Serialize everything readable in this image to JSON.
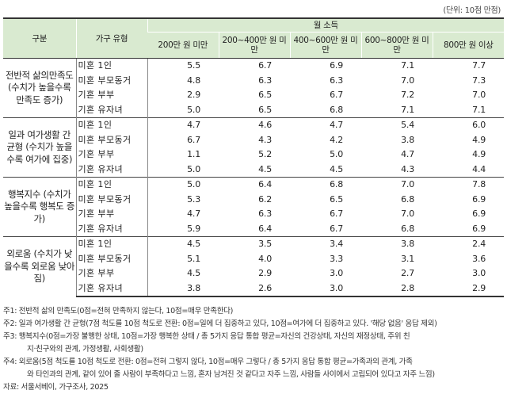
{
  "unit": "(단위: 10점 만점)",
  "header": {
    "category": "구분",
    "household_type": "가구 유형",
    "income_group": "월 소득",
    "income_brackets": [
      "200만 원 미만",
      "200~400만 원 미만",
      "400~600만 원 미만",
      "600~800만 원 미만",
      "800만 원 이상"
    ]
  },
  "groups": [
    {
      "category": "전반적 삶의만족도 (수치가 높을수록 만족도 증가)",
      "rows": [
        {
          "type": "미혼 1인",
          "values": [
            "5.5",
            "6.7",
            "6.9",
            "7.1",
            "7.7"
          ]
        },
        {
          "type": "미혼 부모동거",
          "values": [
            "4.8",
            "6.3",
            "6.3",
            "7.0",
            "7.3"
          ]
        },
        {
          "type": "기혼 부부",
          "values": [
            "2.9",
            "6.5",
            "6.7",
            "7.2",
            "7.0"
          ]
        },
        {
          "type": "기혼 유자녀",
          "values": [
            "5.0",
            "6.5",
            "6.8",
            "7.1",
            "7.1"
          ]
        }
      ]
    },
    {
      "category": "일과 여가생활 간 균형 (수치가 높을수록 여가에 집중)",
      "rows": [
        {
          "type": "미혼 1인",
          "values": [
            "4.7",
            "4.6",
            "4.7",
            "5.4",
            "6.0"
          ]
        },
        {
          "type": "미혼 부모동거",
          "values": [
            "6.7",
            "4.3",
            "4.2",
            "3.8",
            "4.9"
          ]
        },
        {
          "type": "기혼 부부",
          "values": [
            "1.1",
            "5.2",
            "5.0",
            "4.7",
            "4.9"
          ]
        },
        {
          "type": "기혼 유자녀",
          "values": [
            "5.0",
            "4.5",
            "4.5",
            "4.3",
            "4.4"
          ]
        }
      ]
    },
    {
      "category": "행복지수 (수치가 높을수록 행복도 증가)",
      "rows": [
        {
          "type": "미혼 1인",
          "values": [
            "5.0",
            "6.4",
            "6.8",
            "7.0",
            "7.8"
          ]
        },
        {
          "type": "미혼 부모동거",
          "values": [
            "5.3",
            "6.2",
            "6.5",
            "6.8",
            "6.9"
          ]
        },
        {
          "type": "기혼 부부",
          "values": [
            "4.7",
            "6.3",
            "6.7",
            "7.0",
            "6.9"
          ]
        },
        {
          "type": "기혼 유자녀",
          "values": [
            "5.9",
            "6.4",
            "6.7",
            "6.8",
            "6.9"
          ]
        }
      ]
    },
    {
      "category": "외로움 (수치가 낮을수록 외로움 낮아짐)",
      "rows": [
        {
          "type": "미혼 1인",
          "values": [
            "4.5",
            "3.5",
            "3.4",
            "3.8",
            "2.4"
          ]
        },
        {
          "type": "미혼 부모동거",
          "values": [
            "5.1",
            "4.0",
            "3.3",
            "3.1",
            "3.6"
          ]
        },
        {
          "type": "기혼 부부",
          "values": [
            "4.5",
            "2.9",
            "3.0",
            "2.7",
            "3.0"
          ]
        },
        {
          "type": "기혼 유자녀",
          "values": [
            "3.8",
            "2.6",
            "3.0",
            "2.8",
            "2.9"
          ]
        }
      ]
    }
  ],
  "notes": [
    "주1: 전반적 삶의 만족도(0점=전혀 만족하지 않는다, 10점=매우 만족한다)",
    "주2: 일과 여가생활 간 균형(7점 척도를 10점 척도로 전환: 0점=일에 더 집중하고 있다, 10점=여가에 더 집중하고 있다. '해당 없음' 응답 제외)",
    "주3: 행복지수(0점=가장 불행한 상태, 10점=가장 행복한 상태 / 총 5가지 응답 통합 평균=자신의 건강상태, 자신의 재정상태, 주위 친",
    "지·친구와의 관계, 가정생활, 사회생활)",
    "주4: 외로움(5점 척도를 10점 척도로 전환: 0점=전혀 그렇지 않다, 10점=매우 그렇다 / 총 5가지 응답 통합 평균=가족과의 관계, 가족",
    "와 타인과의 관계, 같이 있어 줄 사람이 부족하다고 느낌, 혼자 남겨진 것 같다고 자주 느낌, 사람들 사이에서 고립되어 있다고 자주 느낌)",
    "자료: 서울서베이, 가구조사, 2025"
  ]
}
